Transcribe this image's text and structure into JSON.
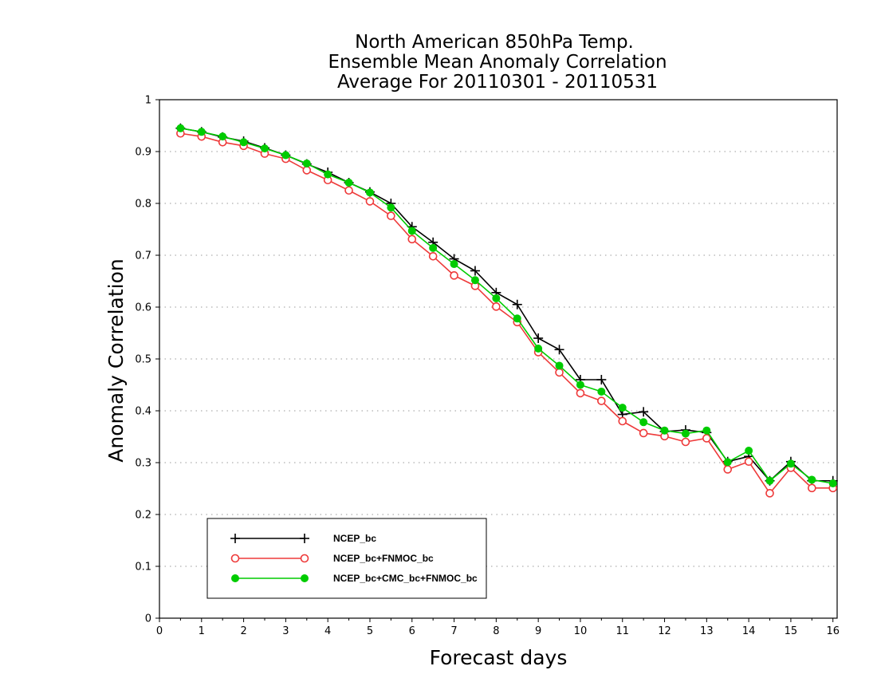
{
  "chart_data": {
    "type": "line",
    "title": [
      "North American 850hPa Temp.",
      "Ensemble Mean Anomaly Correlation",
      "Average For 20110301 - 20110531"
    ],
    "xlabel": "Forecast days",
    "ylabel": "Anomaly Correlation",
    "xlim": [
      0,
      16.1
    ],
    "ylim": [
      0,
      1
    ],
    "xticks": [
      "0",
      "1",
      "2",
      "3",
      "4",
      "5",
      "6",
      "7",
      "8",
      "9",
      "10",
      "11",
      "12",
      "13",
      "14",
      "15",
      "16"
    ],
    "yticks": [
      "0",
      "0.1",
      "0.2",
      "0.3",
      "0.4",
      "0.5",
      "0.6",
      "0.7",
      "0.8",
      "0.9",
      "1"
    ],
    "grid": "horizontal dotted",
    "legend_position": "lower-left",
    "x": [
      0.5,
      1,
      1.5,
      2,
      2.5,
      3,
      3.5,
      4,
      4.5,
      5,
      5.5,
      6,
      6.5,
      7,
      7.5,
      8,
      8.5,
      9,
      9.5,
      10,
      10.5,
      11,
      11.5,
      12,
      12.5,
      13,
      13.5,
      14,
      14.5,
      15,
      15.5,
      16
    ],
    "series": [
      {
        "name": "NCEP_bc",
        "color": "#000000",
        "marker": "plus",
        "values": [
          0.945,
          0.938,
          0.928,
          0.92,
          0.907,
          0.893,
          0.876,
          0.86,
          0.84,
          0.822,
          0.8,
          0.755,
          0.725,
          0.693,
          0.67,
          0.628,
          0.605,
          0.54,
          0.518,
          0.46,
          0.46,
          0.393,
          0.398,
          0.36,
          0.363,
          0.358,
          0.302,
          0.312,
          0.265,
          0.302,
          0.265,
          0.265
        ]
      },
      {
        "name": "NCEP_bc+FNMOC_bc",
        "color": "#ee3a3a",
        "marker": "open-circle",
        "values": [
          0.935,
          0.929,
          0.918,
          0.911,
          0.896,
          0.886,
          0.864,
          0.845,
          0.825,
          0.804,
          0.776,
          0.731,
          0.698,
          0.661,
          0.641,
          0.601,
          0.571,
          0.513,
          0.474,
          0.434,
          0.419,
          0.38,
          0.357,
          0.351,
          0.34,
          0.347,
          0.287,
          0.302,
          0.241,
          0.29,
          0.251,
          0.251
        ]
      },
      {
        "name": "NCEP_bc+CMC_bc+FNMOC_bc",
        "color": "#00cc00",
        "marker": "filled-circle",
        "values": [
          0.945,
          0.938,
          0.929,
          0.918,
          0.906,
          0.893,
          0.877,
          0.856,
          0.84,
          0.821,
          0.792,
          0.747,
          0.714,
          0.683,
          0.652,
          0.617,
          0.578,
          0.52,
          0.487,
          0.45,
          0.437,
          0.406,
          0.378,
          0.362,
          0.356,
          0.362,
          0.301,
          0.323,
          0.265,
          0.298,
          0.267,
          0.26
        ]
      }
    ]
  }
}
